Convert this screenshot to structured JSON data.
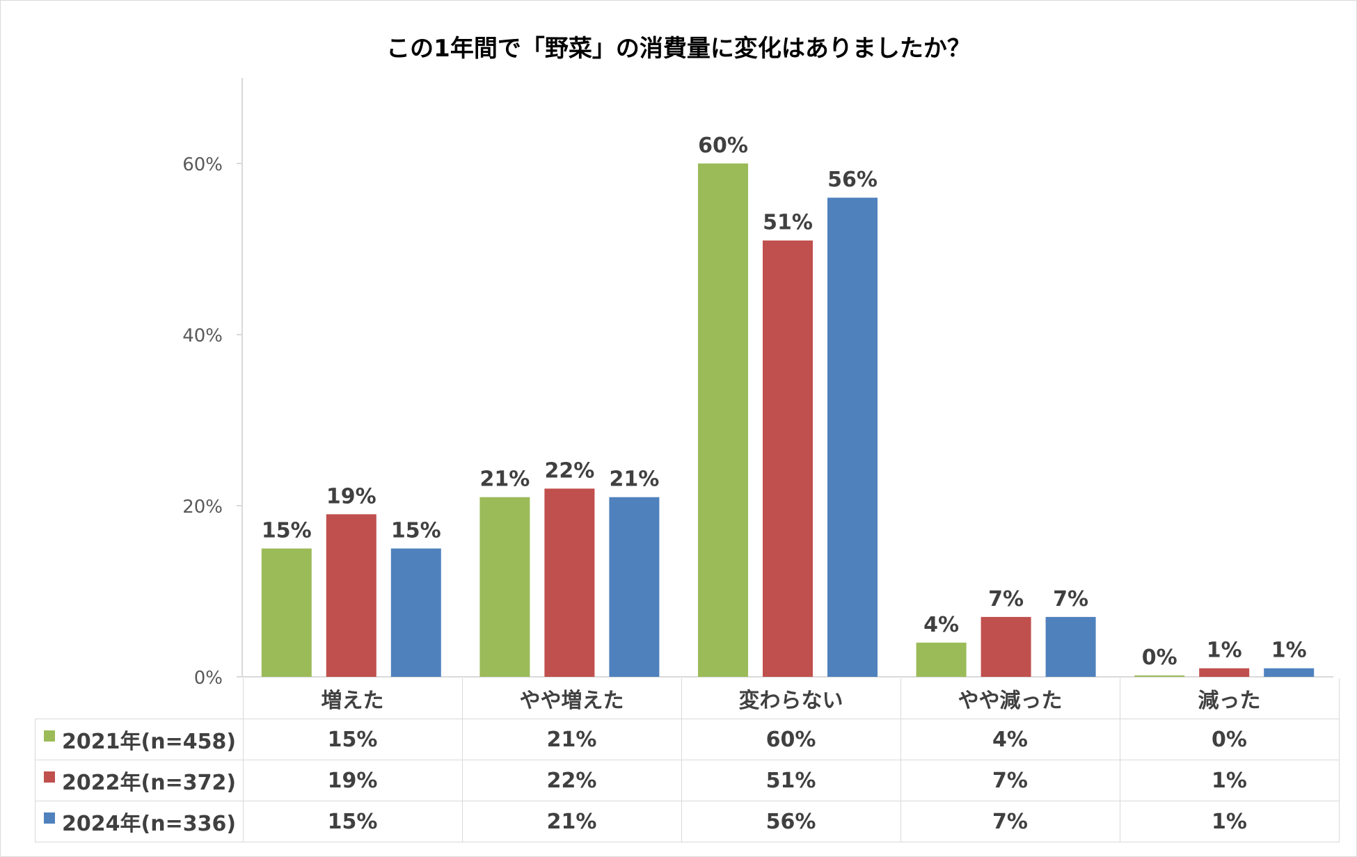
{
  "chart_data": {
    "type": "bar",
    "title": "この1年間で「野菜」の消費量に変化はありましたか？",
    "categories": [
      "増えた",
      "やや増えた",
      "変わらない",
      "やや減った",
      "減った"
    ],
    "series": [
      {
        "name": "2021年(n=458)",
        "color": "#9bbb59",
        "values": [
          15,
          21,
          60,
          4,
          0
        ],
        "labels": [
          "15%",
          "21%",
          "60%",
          "4%",
          "0%"
        ]
      },
      {
        "name": "2022年(n=372)",
        "color": "#c0504d",
        "values": [
          19,
          22,
          51,
          7,
          1
        ],
        "labels": [
          "19%",
          "22%",
          "51%",
          "7%",
          "1%"
        ]
      },
      {
        "name": "2024年(n=336)",
        "color": "#4f81bd",
        "values": [
          15,
          21,
          56,
          7,
          1
        ],
        "labels": [
          "15%",
          "21%",
          "56%",
          "7%",
          "1%"
        ]
      }
    ],
    "yticks": [
      "0%",
      "20%",
      "40%",
      "60%"
    ],
    "ytick_values": [
      0,
      20,
      40,
      60
    ],
    "ylim": [
      0,
      70
    ],
    "grid": false,
    "legend": "data-table"
  }
}
